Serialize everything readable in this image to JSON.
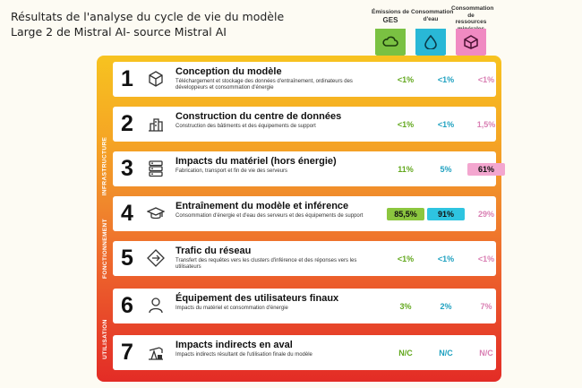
{
  "caption": {
    "line1": "Résultats de l'analyse du cycle de vie du modèle",
    "line2": "Large 2 de Mistral AI- source Mistral AI"
  },
  "columns": [
    {
      "line1": "Émissions de",
      "line2": "GES",
      "color": "#7ac142",
      "icon": "cloud-icon"
    },
    {
      "line1": "Consommation",
      "line2": "d'eau",
      "color": "#29b8d6",
      "icon": "water-drop-icon"
    },
    {
      "line1": "Consommation",
      "line2": "de ressources minérales",
      "color": "#f08ac2",
      "icon": "mineral-cube-icon"
    }
  ],
  "bands": {
    "infrastructure": "INFRASTRUCTURE",
    "fonctionnement": "FONCTIONNEMENT",
    "utilisation": "UTILISATION"
  },
  "highlight_colors": {
    "ges": "#8cc63f",
    "eau": "#2ec4e0",
    "minerales": "#f3a6cf"
  },
  "rows": [
    {
      "num": "1",
      "icon": "box-icon",
      "title": "Conception du modèle",
      "desc": "Téléchargement et stockage des données d'entraînement, ordinateurs des développeurs et consommation d'énergie",
      "ges": "<1%",
      "eau": "<1%",
      "min": "<1%"
    },
    {
      "num": "2",
      "icon": "building-icon",
      "title": "Construction du centre de données",
      "desc": "Construction des bâtiments et des équipements de support",
      "ges": "<1%",
      "eau": "<1%",
      "min": "1,5%"
    },
    {
      "num": "3",
      "icon": "server-icon",
      "title": "Impacts du matériel (hors énergie)",
      "desc": "Fabrication, transport et fin de vie des serveurs",
      "ges": "11%",
      "eau": "5%",
      "min": "61%"
    },
    {
      "num": "4",
      "icon": "graduation-cap-icon",
      "title": "Entraînement du modèle et inférence",
      "desc": "Consommation d'énergie et d'eau des serveurs et des équipements de support",
      "ges": "85,5%",
      "eau": "91%",
      "min": "29%"
    },
    {
      "num": "5",
      "icon": "network-icon",
      "title": "Trafic du réseau",
      "desc": "Transfert des requêtes vers les clusters d'inférence et des réponses vers les utilisateurs",
      "ges": "<1%",
      "eau": "<1%",
      "min": "<1%"
    },
    {
      "num": "6",
      "icon": "user-icon",
      "title": "Équipement des utilisateurs finaux",
      "desc": "Impacts du matériel et consommation d'énergie",
      "ges": "3%",
      "eau": "2%",
      "min": "7%"
    },
    {
      "num": "7",
      "icon": "oil-pump-icon",
      "title": "Impacts indirects en aval",
      "desc": "Impacts indirects résultant de l'utilisation finale du modèle",
      "ges": "N/C",
      "eau": "N/C",
      "min": "N/C"
    }
  ]
}
